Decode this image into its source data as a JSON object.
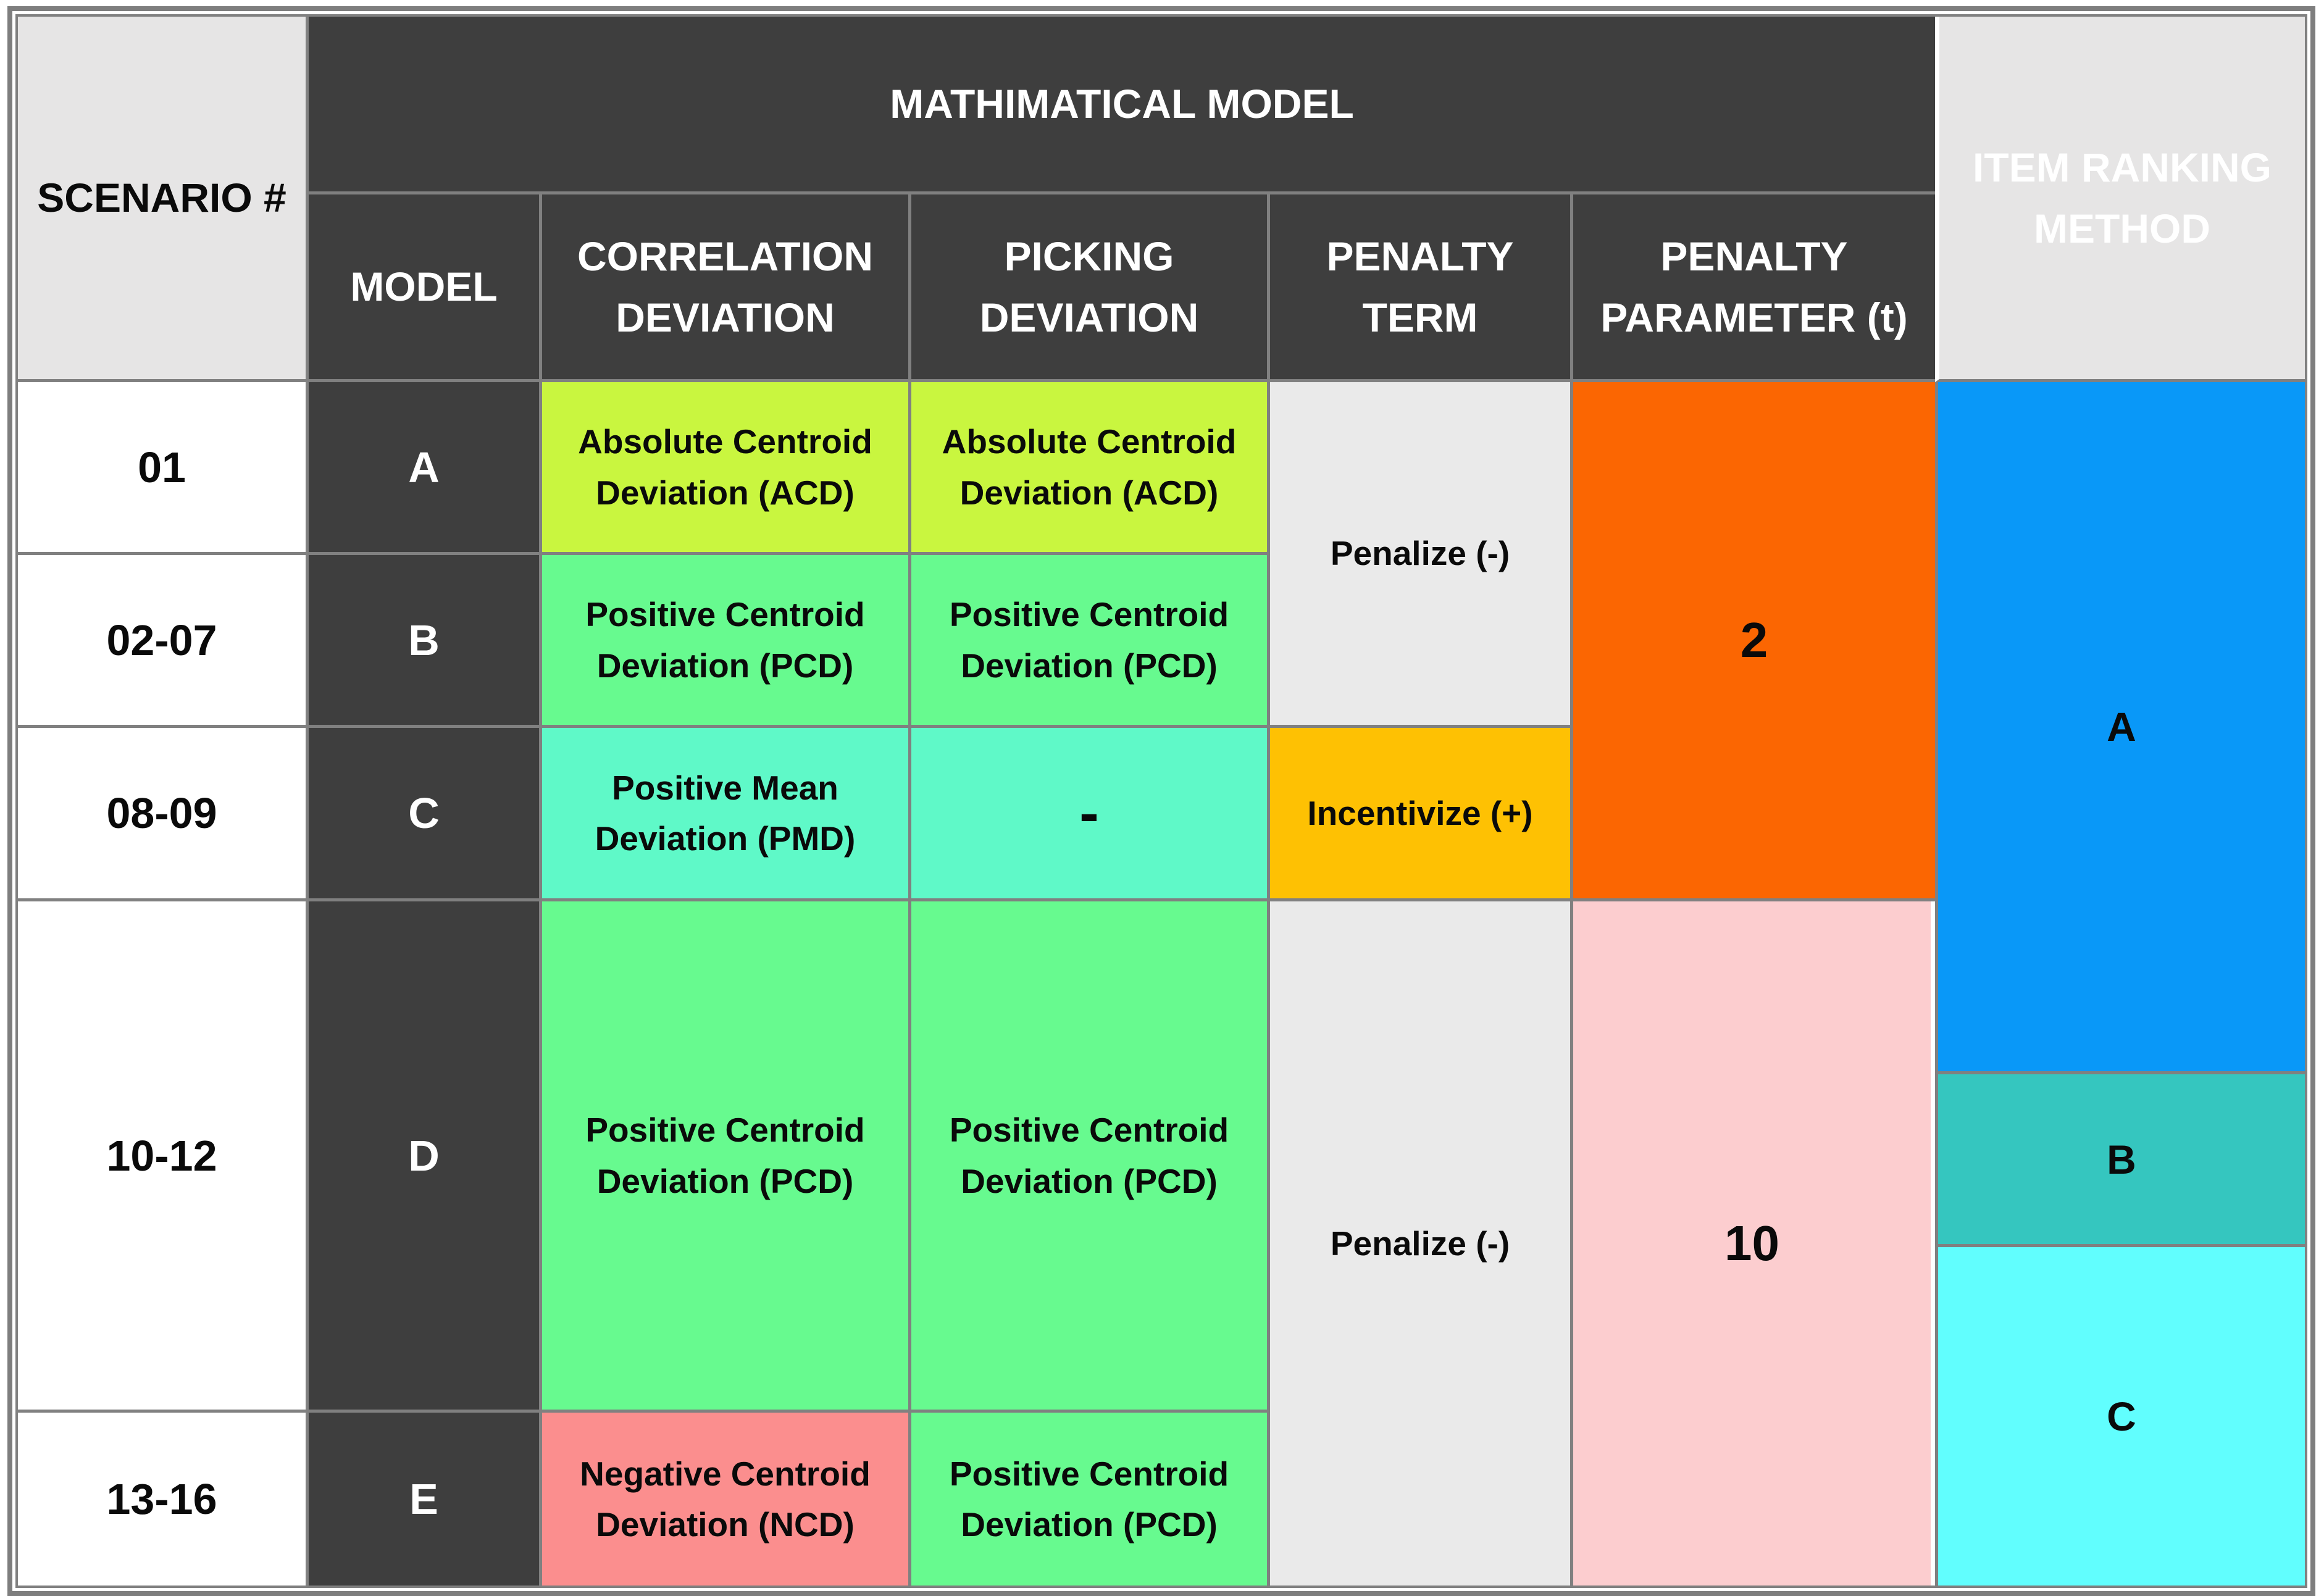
{
  "chart_data": {
    "type": "table",
    "title": "Scenario / mathematical model configuration table",
    "columns": [
      "SCENARIO #",
      "MODEL",
      "CORRELATION DEVIATION",
      "PICKING DEVIATION",
      "PENALTY TERM",
      "PENALTY PARAMETER (t)",
      "ITEM RANKING METHOD"
    ],
    "column_group": {
      "label": "MATHIMATICAL MODEL",
      "spans_columns": [
        "MODEL",
        "CORRELATION DEVIATION",
        "PICKING DEVIATION",
        "PENALTY TERM",
        "PENALTY PARAMETER (t)"
      ]
    },
    "rows": [
      [
        "01",
        "A",
        "Absolute Centroid Deviation (ACD)",
        "Absolute Centroid Deviation (ACD)",
        "Penalize (-)",
        "2",
        "A"
      ],
      [
        "02-07",
        "B",
        "Positive Centroid Deviation (PCD)",
        "Positive Centroid Deviation (PCD)",
        "Penalize (-)",
        "2",
        "A"
      ],
      [
        "08-09",
        "C",
        "Positive Mean Deviation (PMD)",
        "-",
        "Incentivize (+)",
        "2",
        "A"
      ],
      [
        "10-12",
        "D",
        "Positive Centroid Deviation (PCD)",
        "Positive Centroid Deviation (PCD)",
        "Penalize (-)",
        "10",
        "A / B / C"
      ],
      [
        "13-16",
        "E",
        "Negative Centroid Deviation (NCD)",
        "Positive Centroid Deviation (PCD)",
        "Penalize (-)",
        "10",
        "C"
      ]
    ],
    "merges": [
      "Penalize (-) merged across scenario rows 01 and 02-07",
      "Penalty parameter 2 merged across scenario rows 01, 02-07, 08-09",
      "Penalize (-) merged across scenario rows 10-12 and 13-16",
      "Penalty parameter 10 merged across scenario rows 10-12 and 13-16",
      "Item ranking A merged from row 01 through upper part of 10-12; B and C bands follow below"
    ],
    "legend_position": "none",
    "grid": true
  },
  "cells": {
    "scenario_header": "SCENARIO #",
    "math_model_header": "MATHIMATICAL MODEL",
    "model_header": "MODEL",
    "correlation_header": "CORRELATION\nDEVIATION",
    "picking_header": "PICKING\nDEVIATION",
    "penalty_term_header": "PENALTY\nTERM",
    "penalty_param_header": "PENALTY\nPARAMETER (t)",
    "item_ranking_header": "ITEM RANKING\nMETHOD",
    "scenario_01": "01",
    "scenario_02_07": "02-07",
    "scenario_08_09": "08-09",
    "scenario_10_12": "10-12",
    "scenario_13_16": "13-16",
    "model_a": "A",
    "model_b": "B",
    "model_c": "C",
    "model_d": "D",
    "model_e": "E",
    "corr_acd": "Absolute Centroid\nDeviation (ACD)",
    "corr_pcd_b": "Positive Centroid\nDeviation (PCD)",
    "corr_pmd": "Positive Mean\nDeviation (PMD)",
    "corr_pcd_d": "Positive Centroid\nDeviation (PCD)",
    "corr_ncd": "Negative Centroid\nDeviation (NCD)",
    "pick_acd": "Absolute Centroid\nDeviation (ACD)",
    "pick_pcd_b": "Positive Centroid\nDeviation (PCD)",
    "pick_dash": "-",
    "pick_pcd_d": "Positive Centroid\nDeviation (PCD)",
    "pick_pcd_e": "Positive Centroid\nDeviation (PCD)",
    "penalize_top": "Penalize (-)",
    "incentivize": "Incentivize (+)",
    "penalize_bottom": "Penalize (-)",
    "param_2": "2",
    "param_10": "10",
    "rank_a": "A",
    "rank_b": "B",
    "rank_c": "C"
  },
  "colors": {
    "header_dark": "#3E3E3E",
    "header_light": "#E6E5E5",
    "cell_white": "#FFFFFF",
    "grid_gray": "#808080",
    "acd_yellow_green": "#C9F63F",
    "pcd_green": "#67FA8F",
    "pmd_turquoise": "#5FF9C8",
    "penalize_gray": "#EAEAEA",
    "incentivize_amber": "#FEC103",
    "param_orange": "#FB6602",
    "param_pink": "#FCCDCF",
    "ncd_salmon": "#FB8E8E",
    "rank_a_blue": "#0998F8",
    "rank_b_teal": "#35C6BF",
    "rank_c_cyan": "#61FEFE"
  }
}
